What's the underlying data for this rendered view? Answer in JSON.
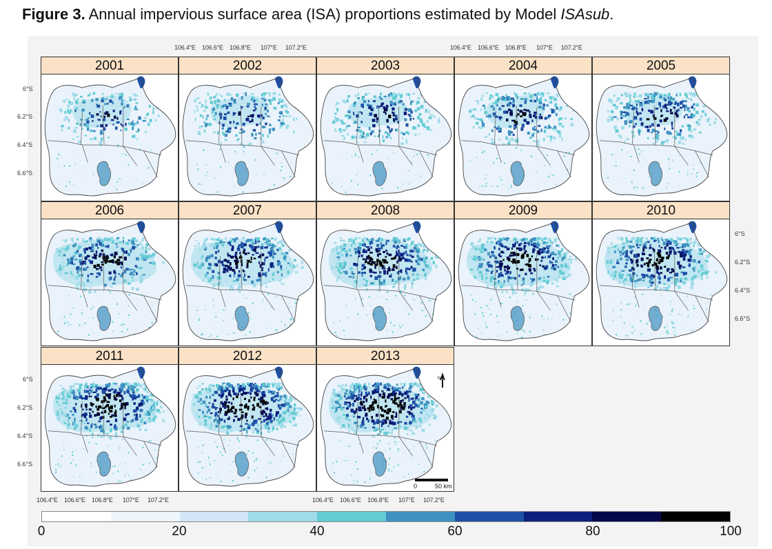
{
  "caption": {
    "lead": "Figure 3.",
    "text": " Annual impervious surface area (ISA) proportions estimated by Model ",
    "emph": "ISAsub",
    "end": "."
  },
  "panels": [
    "2001",
    "2002",
    "2003",
    "2004",
    "2005",
    "2006",
    "2007",
    "2008",
    "2009",
    "2010",
    "2011",
    "2012",
    "2013"
  ],
  "lat_labels": [
    "6°S",
    "6.2°S",
    "6.4°S",
    "6.6°S"
  ],
  "lon_labels": [
    "106.4°E",
    "106.6°E",
    "106.8°E",
    "107°E",
    "107.2°E"
  ],
  "scale": {
    "zero": "0",
    "distance": "50 km"
  },
  "north_arrow": "north-arrow-icon",
  "colorbar": {
    "colors": [
      "#ffffff",
      "#eef5fc",
      "#d2e6f8",
      "#9fdbe9",
      "#63cbd3",
      "#3e91c0",
      "#1d4fa6",
      "#0b1f7d",
      "#04094b",
      "#000000"
    ],
    "ticks": [
      "0",
      "20",
      "40",
      "60",
      "80",
      "100"
    ]
  }
}
